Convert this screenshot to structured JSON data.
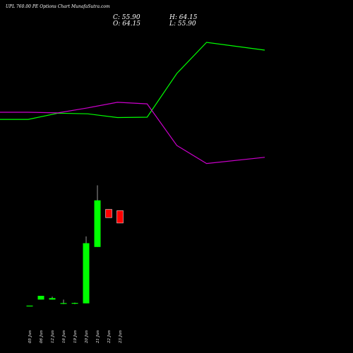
{
  "header": {
    "title": "UPL 760.00 PE Options  Chart MunafaSutra.com",
    "close": "C: 55.90",
    "high": "H: 64.15",
    "open": "O: 64.15",
    "low": "L: 55.90"
  },
  "colors": {
    "background": "#000000",
    "up": "#00ff00",
    "down": "#ff0000",
    "line_green": "#00ff00",
    "line_magenta": "#cc00cc",
    "text": "#ffffff"
  },
  "chart_data": [
    {
      "type": "line",
      "x": [
        "05 Jun",
        "06 Jun",
        "12 Jun",
        "16 Jun",
        "19 Jun",
        "20 Jun",
        "21 Jun",
        "22 Jun",
        "23 Jun"
      ],
      "series": [
        {
          "color": "green",
          "values": [
            25.2,
            25.2,
            27.2,
            27.0,
            25.8,
            25.9,
            40.0,
            50.0,
            47.5
          ]
        },
        {
          "color": "magenta",
          "values": [
            27.5,
            27.5,
            27.3,
            28.9,
            30.7,
            30.2,
            16.8,
            11.0,
            13.0
          ]
        }
      ],
      "ylim": [
        0,
        60
      ]
    },
    {
      "type": "candlestick",
      "categories": [
        "05 Jun",
        "06 Jun",
        "12 Jun",
        "16 Jun",
        "19 Jun",
        "20 Jun",
        "21 Jun",
        "22 Jun",
        "23 Jun"
      ],
      "open": [
        1.0,
        5.0,
        5.0,
        2.5,
        2.5,
        2.5,
        40.0,
        65.0,
        64.15
      ],
      "close": [
        1.0,
        7.5,
        6.0,
        2.7,
        2.8,
        42.5,
        71.0,
        59.5,
        55.9
      ],
      "high": [
        1.0,
        7.5,
        7.0,
        5.0,
        3.0,
        47.0,
        81.0,
        65.0,
        64.15
      ],
      "low": [
        1.0,
        5.0,
        5.0,
        2.0,
        2.0,
        2.5,
        40.0,
        59.5,
        55.9
      ],
      "ylim": [
        0,
        90
      ]
    }
  ]
}
